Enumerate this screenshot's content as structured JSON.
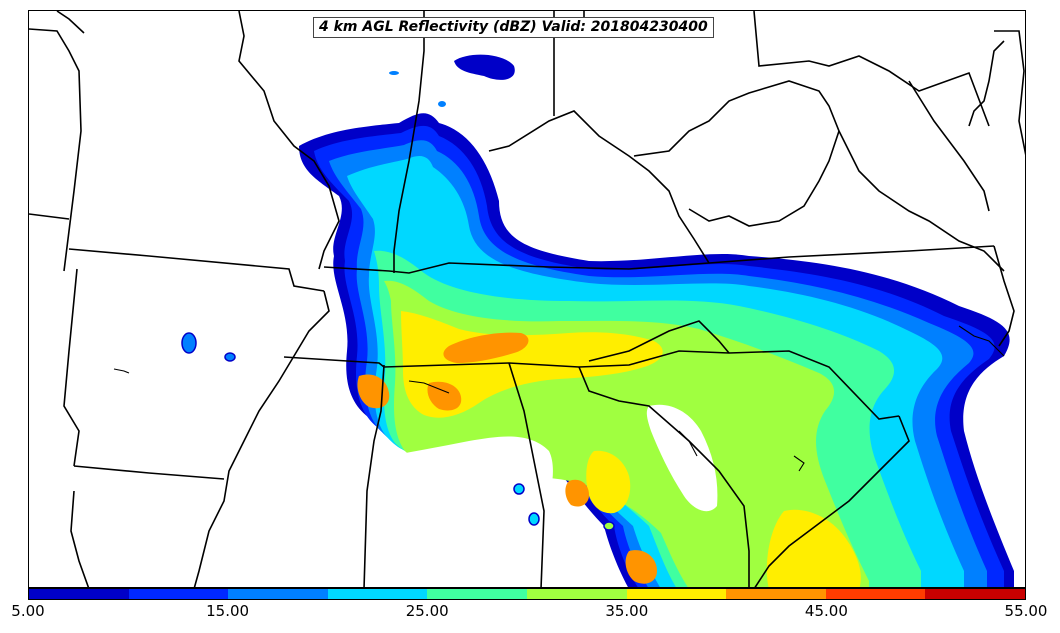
{
  "title": "4 km AGL Reflectivity (dBZ) Valid: 201804230400",
  "colorbar": {
    "colors": [
      "#0000c8",
      "#0028ff",
      "#0080ff",
      "#00d8ff",
      "#40ffa0",
      "#a0ff40",
      "#ffee00",
      "#ff9400",
      "#ff3c00",
      "#c80000"
    ],
    "tick_labels": [
      "5.00",
      "15.00",
      "25.00",
      "35.00",
      "45.00",
      "55.00"
    ]
  }
}
